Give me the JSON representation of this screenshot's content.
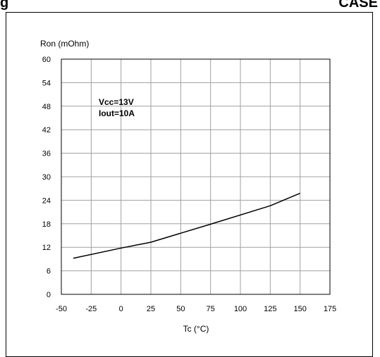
{
  "header": {
    "left_text": "g",
    "right_text": "CASE"
  },
  "chart_data": {
    "type": "line",
    "title": "",
    "xlabel": "Tc (°C)",
    "ylabel": "Ron (mOhm)",
    "xlim": [
      -50,
      175
    ],
    "ylim": [
      0,
      60
    ],
    "x_ticks": [
      -50,
      -25,
      0,
      25,
      50,
      75,
      100,
      125,
      150,
      175
    ],
    "y_ticks": [
      0,
      6,
      12,
      18,
      24,
      30,
      36,
      42,
      48,
      54,
      60
    ],
    "grid": true,
    "annotations": [
      "Vcc=13V",
      "Iout=10A"
    ],
    "series": [
      {
        "x": [
          -40,
          0,
          25,
          75,
          125,
          150
        ],
        "y": [
          9.2,
          11.8,
          13.3,
          17.9,
          22.6,
          25.8
        ]
      }
    ]
  }
}
